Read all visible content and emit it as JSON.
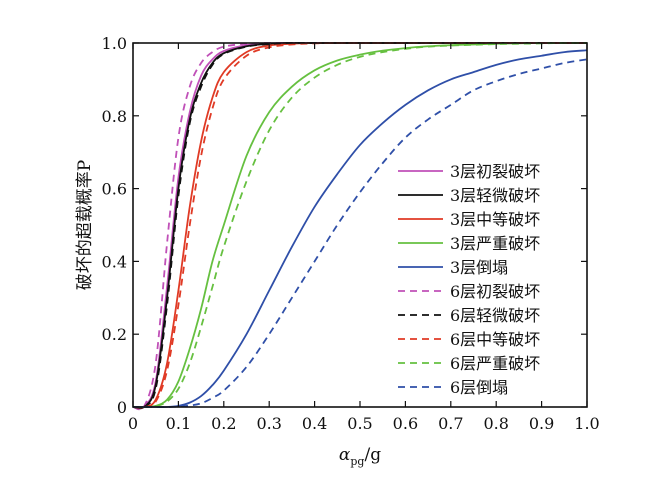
{
  "chart_data": {
    "type": "line",
    "xlabel_main": "α",
    "xlabel_sub": "pg",
    "xlabel_tail": "/g",
    "ylabel": "破坏的超载概率P",
    "xlim": [
      0,
      1.0
    ],
    "ylim": [
      0,
      1.0
    ],
    "x_ticks": [
      0,
      0.1,
      0.2,
      0.3,
      0.4,
      0.5,
      0.6,
      0.7,
      0.8,
      0.9,
      1.0
    ],
    "x_tick_labels": [
      "0",
      "0.1",
      "0.2",
      "0.3",
      "0.4",
      "0.5",
      "0.6",
      "0.7",
      "0.8",
      "0.9",
      "1.0"
    ],
    "y_ticks": [
      0,
      0.2,
      0.4,
      0.6,
      0.8,
      1.0
    ],
    "y_tick_labels": [
      "0",
      "0.2",
      "0.4",
      "0.6",
      "0.8",
      "1.0"
    ],
    "grid": false,
    "legend_position": "bottom-right",
    "x": [
      0,
      0.025,
      0.05,
      0.075,
      0.1,
      0.125,
      0.15,
      0.175,
      0.2,
      0.25,
      0.3,
      0.35,
      0.4,
      0.45,
      0.5,
      0.55,
      0.6,
      0.65,
      0.7,
      0.75,
      0.8,
      0.85,
      0.9,
      0.95,
      1.0
    ],
    "series": [
      {
        "name": "3层初裂破坏",
        "color": "#c050b8",
        "dash": "solid",
        "values": [
          0,
          0.002,
          0.07,
          0.33,
          0.63,
          0.81,
          0.91,
          0.955,
          0.978,
          0.994,
          0.999,
          1,
          1,
          1,
          1,
          1,
          1,
          1,
          1,
          1,
          1,
          1,
          1,
          1,
          1
        ]
      },
      {
        "name": "3层轻微破坏",
        "color": "#111111",
        "dash": "solid",
        "values": [
          0,
          0.001,
          0.06,
          0.3,
          0.6,
          0.79,
          0.89,
          0.945,
          0.972,
          0.991,
          0.998,
          1,
          1,
          1,
          1,
          1,
          1,
          1,
          1,
          1,
          1,
          1,
          1,
          1,
          1
        ]
      },
      {
        "name": "3层中等破坏",
        "color": "#e03a25",
        "dash": "solid",
        "values": [
          0,
          0,
          0.02,
          0.12,
          0.32,
          0.55,
          0.73,
          0.85,
          0.92,
          0.975,
          0.993,
          0.998,
          1,
          1,
          1,
          1,
          1,
          1,
          1,
          1,
          1,
          1,
          1,
          1,
          1
        ]
      },
      {
        "name": "3层严重破坏",
        "color": "#66c040",
        "dash": "solid",
        "values": [
          0,
          0,
          0.003,
          0.02,
          0.07,
          0.16,
          0.27,
          0.4,
          0.5,
          0.69,
          0.81,
          0.88,
          0.925,
          0.952,
          0.968,
          0.979,
          0.986,
          0.991,
          0.994,
          0.996,
          0.998,
          0.999,
          1,
          1,
          1
        ]
      },
      {
        "name": "3层倒塌",
        "color": "#2f4fa8",
        "dash": "solid",
        "values": [
          0,
          0,
          0,
          0,
          0.003,
          0.012,
          0.03,
          0.06,
          0.1,
          0.2,
          0.32,
          0.44,
          0.55,
          0.64,
          0.72,
          0.78,
          0.83,
          0.87,
          0.9,
          0.92,
          0.94,
          0.955,
          0.965,
          0.975,
          0.98
        ]
      },
      {
        "name": "6层初裂破坏",
        "color": "#c050b8",
        "dash": "dashed",
        "values": [
          0,
          0.003,
          0.12,
          0.45,
          0.74,
          0.88,
          0.945,
          0.975,
          0.99,
          0.998,
          1,
          1,
          1,
          1,
          1,
          1,
          1,
          1,
          1,
          1,
          1,
          1,
          1,
          1,
          1
        ]
      },
      {
        "name": "6层轻微破坏",
        "color": "#111111",
        "dash": "dashed",
        "values": [
          0,
          0.001,
          0.05,
          0.28,
          0.58,
          0.78,
          0.88,
          0.94,
          0.97,
          0.99,
          0.997,
          1,
          1,
          1,
          1,
          1,
          1,
          1,
          1,
          1,
          1,
          1,
          1,
          1,
          1
        ]
      },
      {
        "name": "6层中等破坏",
        "color": "#e03a25",
        "dash": "dashed",
        "values": [
          0,
          0,
          0.015,
          0.1,
          0.28,
          0.5,
          0.69,
          0.82,
          0.9,
          0.965,
          0.988,
          0.996,
          0.999,
          1,
          1,
          1,
          1,
          1,
          1,
          1,
          1,
          1,
          1,
          1,
          1
        ]
      },
      {
        "name": "6层严重破坏",
        "color": "#66c040",
        "dash": "dashed",
        "values": [
          0,
          0,
          0.002,
          0.015,
          0.05,
          0.12,
          0.22,
          0.33,
          0.44,
          0.62,
          0.76,
          0.85,
          0.905,
          0.94,
          0.962,
          0.975,
          0.984,
          0.99,
          0.993,
          0.995,
          0.997,
          0.998,
          0.999,
          1,
          1
        ]
      },
      {
        "name": "6层倒塌",
        "color": "#2f4fa8",
        "dash": "dashed",
        "values": [
          0,
          0,
          0,
          0,
          0.001,
          0.004,
          0.01,
          0.025,
          0.045,
          0.11,
          0.2,
          0.3,
          0.4,
          0.5,
          0.59,
          0.67,
          0.74,
          0.79,
          0.83,
          0.87,
          0.895,
          0.915,
          0.93,
          0.945,
          0.955
        ]
      }
    ]
  }
}
